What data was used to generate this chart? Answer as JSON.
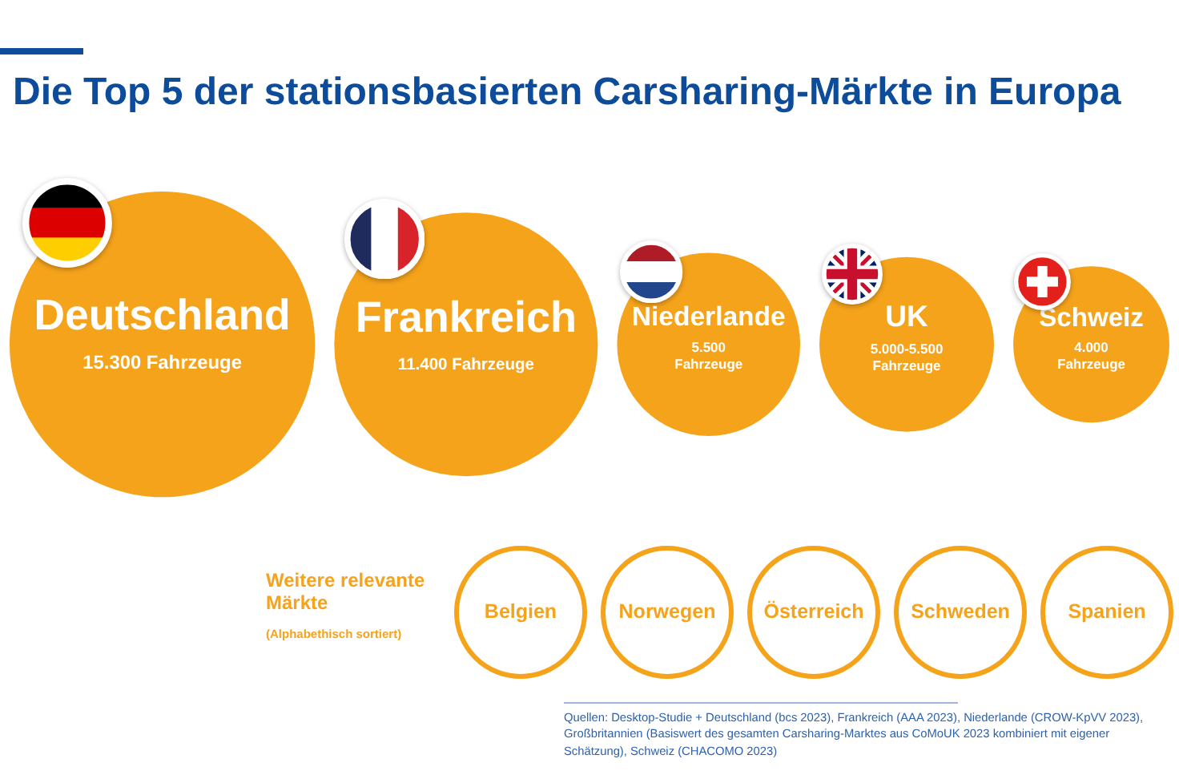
{
  "chart_data": [
    {
      "type": "other",
      "title": "Die Top 5 der stationsbasierten Carsharing-Märkte in Europa",
      "categories": [
        "Deutschland",
        "Frankreich",
        "Niederlande",
        "UK",
        "Schweiz"
      ],
      "values": [
        15300,
        11400,
        5500,
        5000,
        4000
      ],
      "value_labels": [
        "15.300 Fahrzeuge",
        "11.400 Fahrzeuge",
        "5.500 Fahrzeuge",
        "5.000-5.500 Fahrzeuge",
        "4.000 Fahrzeuge"
      ],
      "color": "#f5a31b",
      "annotations": [
        "Quellen: Desktop-Studie + Deutschland (bcs 2023), Frankreich (AAA 2023), Niederlande (CROW-KpVV 2023), Großbritannien (Basiswert des gesamten Carsharing-Marktes aus CoMoUK 2023 kombiniert mit eigener Schätzung), Schweiz (CHACOMO 2023)"
      ]
    },
    {
      "type": "other",
      "title": "Weitere relevante Märkte",
      "subtitle": "(Alphabethisch sortiert)",
      "categories": [
        "Belgien",
        "Norwegen",
        "Österreich",
        "Schweden",
        "Spanien"
      ],
      "color": "#f5a31b"
    }
  ]
}
